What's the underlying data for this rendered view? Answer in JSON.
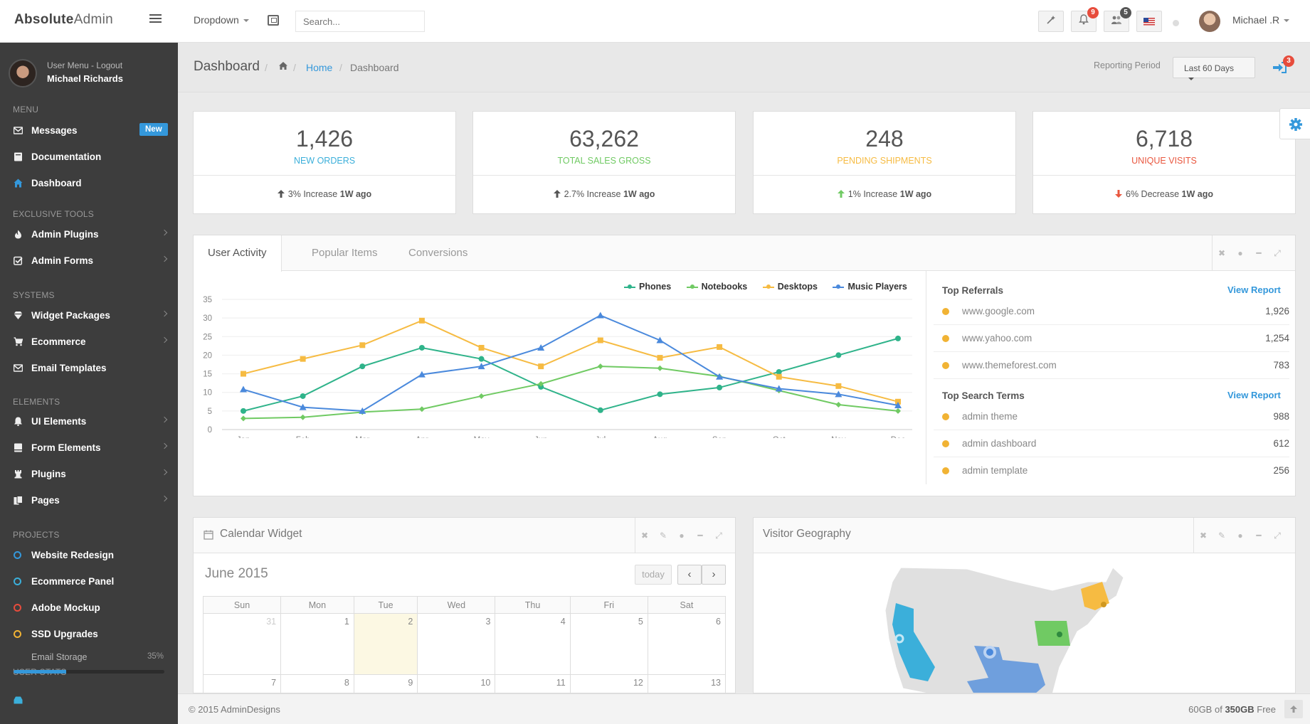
{
  "header": {
    "logo_bold": "Absolute",
    "logo_light": "Admin",
    "dropdown_label": "Dropdown",
    "search_placeholder": "Search...",
    "notifications_count": "9",
    "users_count": "5",
    "user_name": "Michael .R",
    "colors": {
      "notif_badge": "#e74c3c",
      "users_badge": "#555555"
    }
  },
  "sidebar": {
    "user_menu_label": "User Menu - Logout",
    "user_name": "Michael Richards",
    "sections": {
      "menu": "Menu",
      "tools": "Exclusive Tools",
      "systems": "Systems",
      "elements": "Elements",
      "projects": "Projects",
      "user_stats": "User Stats"
    },
    "items": [
      {
        "label": "Messages",
        "icon": "envelope-icon",
        "badge": "New"
      },
      {
        "label": "Documentation",
        "icon": "book-icon"
      },
      {
        "label": "Dashboard",
        "icon": "home-icon"
      },
      {
        "label": "Admin Plugins",
        "icon": "fire-icon"
      },
      {
        "label": "Admin Forms",
        "icon": "check-square-icon"
      },
      {
        "label": "Widget Packages",
        "icon": "diamond-icon"
      },
      {
        "label": "Ecommerce",
        "icon": "cart-icon"
      },
      {
        "label": "Email Templates",
        "icon": "envelope-icon"
      },
      {
        "label": "UI Elements",
        "icon": "bell-icon"
      },
      {
        "label": "Form Elements",
        "icon": "form-icon"
      },
      {
        "label": "Plugins",
        "icon": "chess-icon"
      },
      {
        "label": "Pages",
        "icon": "pages-icon"
      }
    ],
    "projects": [
      {
        "label": "Website Redesign",
        "color": "#3498db"
      },
      {
        "label": "Ecommerce Panel",
        "color": "#3bafda"
      },
      {
        "label": "Adobe Mockup",
        "color": "#e74c3c"
      },
      {
        "label": "SSD Upgrades",
        "color": "#f1b334"
      }
    ],
    "storage": {
      "label": "Email Storage",
      "percent_text": "35%",
      "percent": 35
    }
  },
  "breadcrumb": {
    "title": "Dashboard",
    "home": "Home",
    "current": "Dashboard",
    "reporting_label": "Reporting Period",
    "reporting_value": "Last 60 Days",
    "logout_badge": "3"
  },
  "stats": [
    {
      "value": "1,426",
      "label": "New Orders",
      "change": "3% Increase",
      "period": "1W ago",
      "direction": "up",
      "color": "#3bafda",
      "arrow_color": "#555555"
    },
    {
      "value": "63,262",
      "label": "Total Sales Gross",
      "change": "2.7% Increase",
      "period": "1W ago",
      "direction": "up",
      "color": "#70ca63",
      "arrow_color": "#555555"
    },
    {
      "value": "248",
      "label": "Pending Shipments",
      "change": "1% Increase",
      "period": "1W ago",
      "direction": "up",
      "color": "#f6bb42",
      "arrow_color": "#70ca63"
    },
    {
      "value": "6,718",
      "label": "Unique Visits",
      "change": "6% Decrease",
      "period": "1W ago",
      "direction": "down",
      "color": "#e9573f",
      "arrow_color": "#e9573f"
    }
  ],
  "activity_panel": {
    "tabs": [
      "User Activity",
      "Popular Items",
      "Conversions"
    ],
    "referrals_title": "Top Referrals",
    "search_title": "Top Search Terms",
    "view_report": "View Report",
    "referrals": [
      {
        "name": "www.google.com",
        "value": "1,926"
      },
      {
        "name": "www.yahoo.com",
        "value": "1,254"
      },
      {
        "name": "www.themeforest.com",
        "value": "783"
      }
    ],
    "search_terms": [
      {
        "name": "admin theme",
        "value": "988"
      },
      {
        "name": "admin dashboard",
        "value": "612"
      },
      {
        "name": "admin template",
        "value": "256"
      }
    ]
  },
  "chart_data": {
    "type": "line",
    "categories": [
      "Jan",
      "Feb",
      "Mar",
      "Apr",
      "May",
      "Jun",
      "Jul",
      "Aug",
      "Sep",
      "Oct",
      "Nov",
      "Dec"
    ],
    "ylim": [
      0,
      35
    ],
    "yticks": [
      "0",
      "5",
      "10",
      "15",
      "20",
      "25",
      "30",
      "35"
    ],
    "legend_position": "top-right",
    "grid": true,
    "series": [
      {
        "name": "Phones",
        "color": "#2fb38a",
        "marker": "circle",
        "values": [
          5,
          9,
          17,
          22,
          19,
          11.5,
          5.2,
          9.5,
          11.3,
          15.5,
          20,
          24.5
        ]
      },
      {
        "name": "Notebooks",
        "color": "#70ca63",
        "marker": "diamond",
        "values": [
          3,
          3.3,
          4.7,
          5.5,
          9,
          12.3,
          17,
          16.5,
          14.3,
          10.5,
          6.7,
          5
        ]
      },
      {
        "name": "Desktops",
        "color": "#f6bb42",
        "marker": "square",
        "values": [
          15,
          19,
          22.7,
          29.3,
          22,
          17,
          24,
          19.3,
          22.2,
          14.2,
          11.7,
          7.5
        ]
      },
      {
        "name": "Music Players",
        "color": "#4a89dc",
        "marker": "triangle",
        "values": [
          10.8,
          6,
          5,
          14.8,
          17,
          22,
          30.7,
          24,
          14.2,
          11,
          9.5,
          6.5
        ]
      }
    ]
  },
  "calendar": {
    "title": "Calendar Widget",
    "month": "June 2015",
    "today_label": "today",
    "days": [
      "Sun",
      "Mon",
      "Tue",
      "Wed",
      "Thu",
      "Fri",
      "Sat"
    ],
    "week1": [
      "31",
      "1",
      "2",
      "3",
      "4",
      "5",
      "6"
    ],
    "week2": [
      "7",
      "8",
      "9",
      "10",
      "11",
      "12",
      "13"
    ]
  },
  "geo": {
    "title": "Visitor Geography"
  },
  "footer": {
    "copyright": "© 2015 AdminDesigns",
    "disk_used": "60GB of",
    "disk_total": "350GB",
    "disk_suffix": "Free"
  }
}
